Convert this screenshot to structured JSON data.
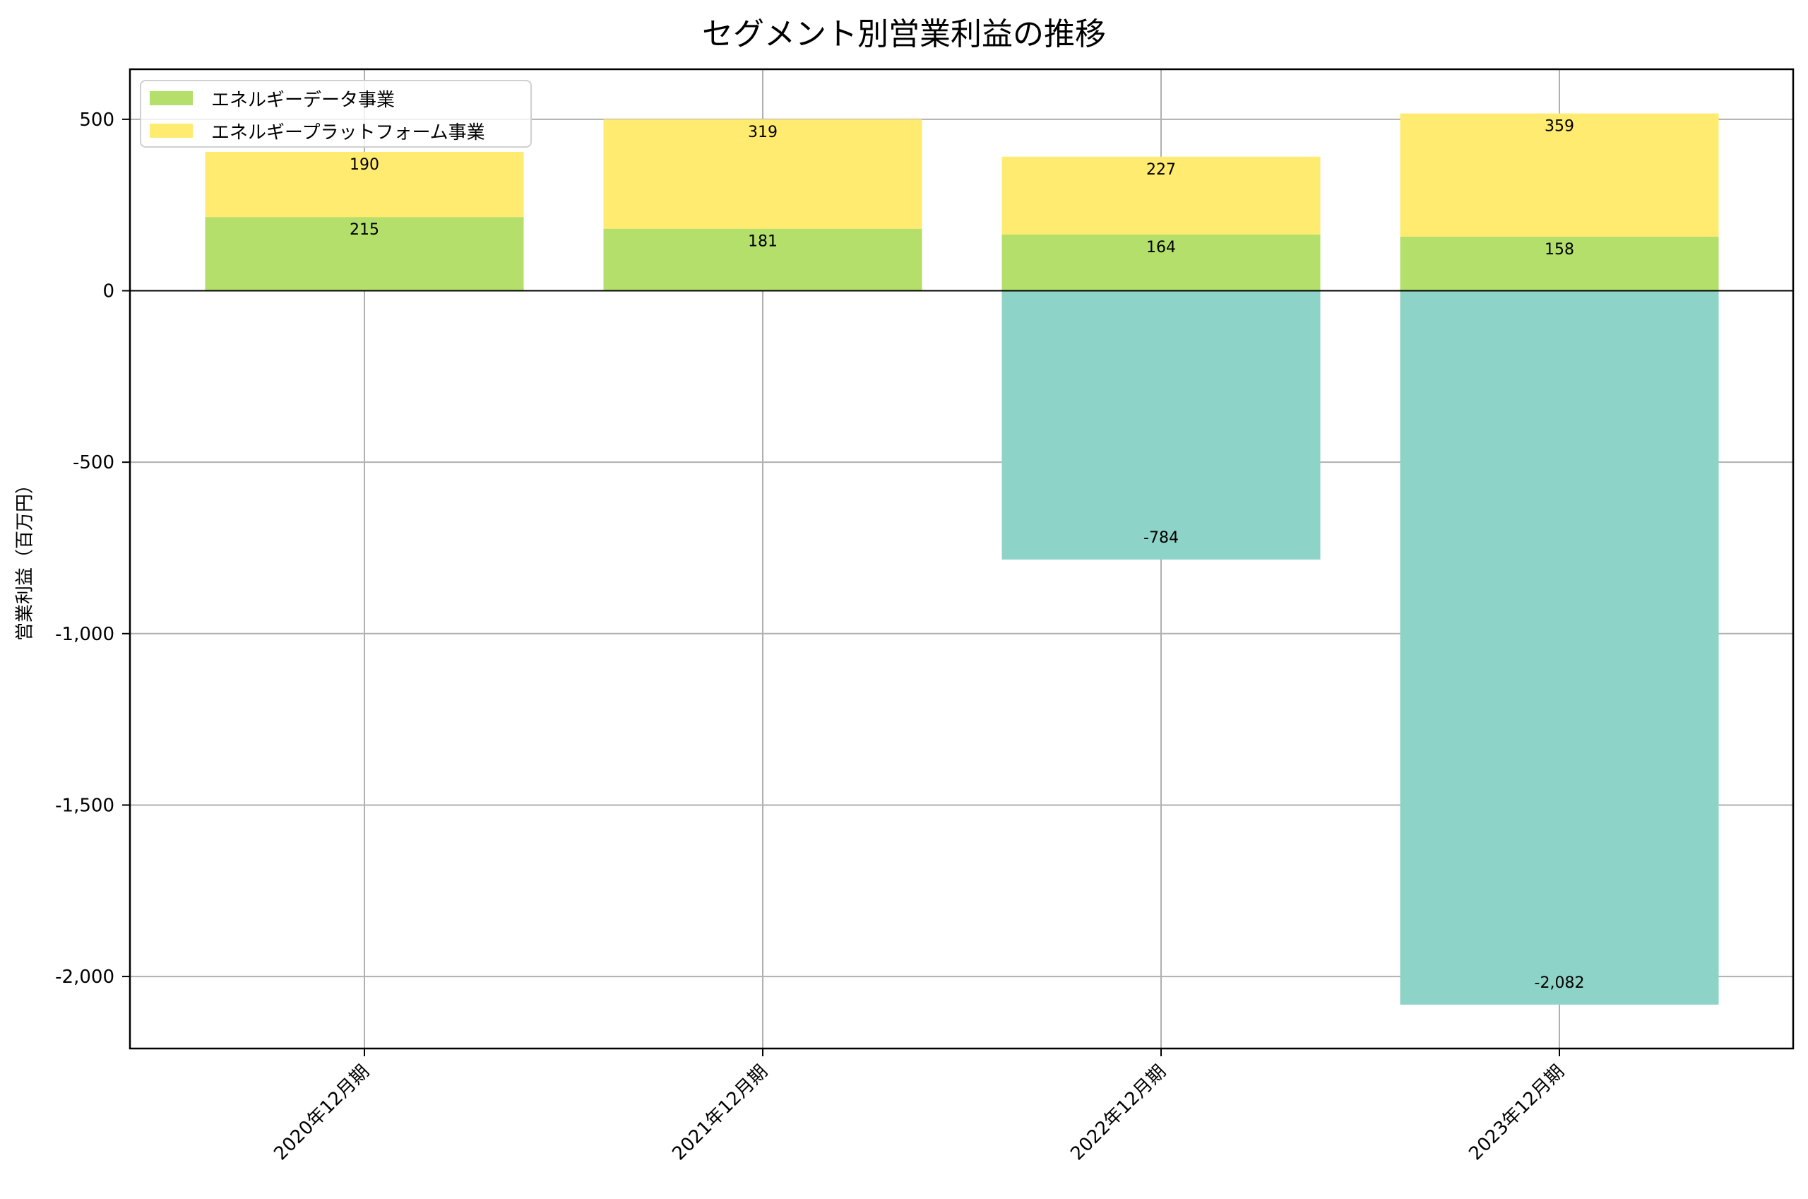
{
  "chart_data": {
    "type": "bar",
    "stacked": true,
    "title": "セグメント別営業利益の推移",
    "xlabel": "",
    "ylabel": "営業利益（百万円）",
    "categories": [
      "2020年12月期",
      "2021年12月期",
      "2022年12月期",
      "2023年12月期"
    ],
    "series": [
      {
        "name": "エネルギーデータ事業",
        "color": "#b3df6a",
        "values": [
          215,
          181,
          164,
          158
        ],
        "labels": [
          "215",
          "181",
          "164",
          "158"
        ]
      },
      {
        "name": "エネルギープラットフォーム事業",
        "color": "#ffeb70",
        "values": [
          190,
          319,
          227,
          359
        ],
        "labels": [
          "190",
          "319",
          "227",
          "359"
        ]
      },
      {
        "name": "",
        "color": "#8ed3c7",
        "values": [
          null,
          null,
          -784,
          -2082
        ],
        "labels": [
          "",
          "",
          "-784",
          "-2,082"
        ]
      }
    ],
    "ylim": [
      -2210,
      646
    ],
    "yticks": [
      500,
      0,
      -500,
      -1000,
      -1500,
      -2000
    ],
    "ytick_labels": [
      "500",
      "0",
      "-500",
      "-1,000",
      "-1,500",
      "-2,000"
    ],
    "grid": true,
    "legend_position": "upper left",
    "xtick_rotation": 45
  },
  "legend": {
    "items": [
      {
        "label": "エネルギーデータ事業",
        "color": "#b3df6a"
      },
      {
        "label": "エネルギープラットフォーム事業",
        "color": "#ffeb70"
      }
    ]
  }
}
